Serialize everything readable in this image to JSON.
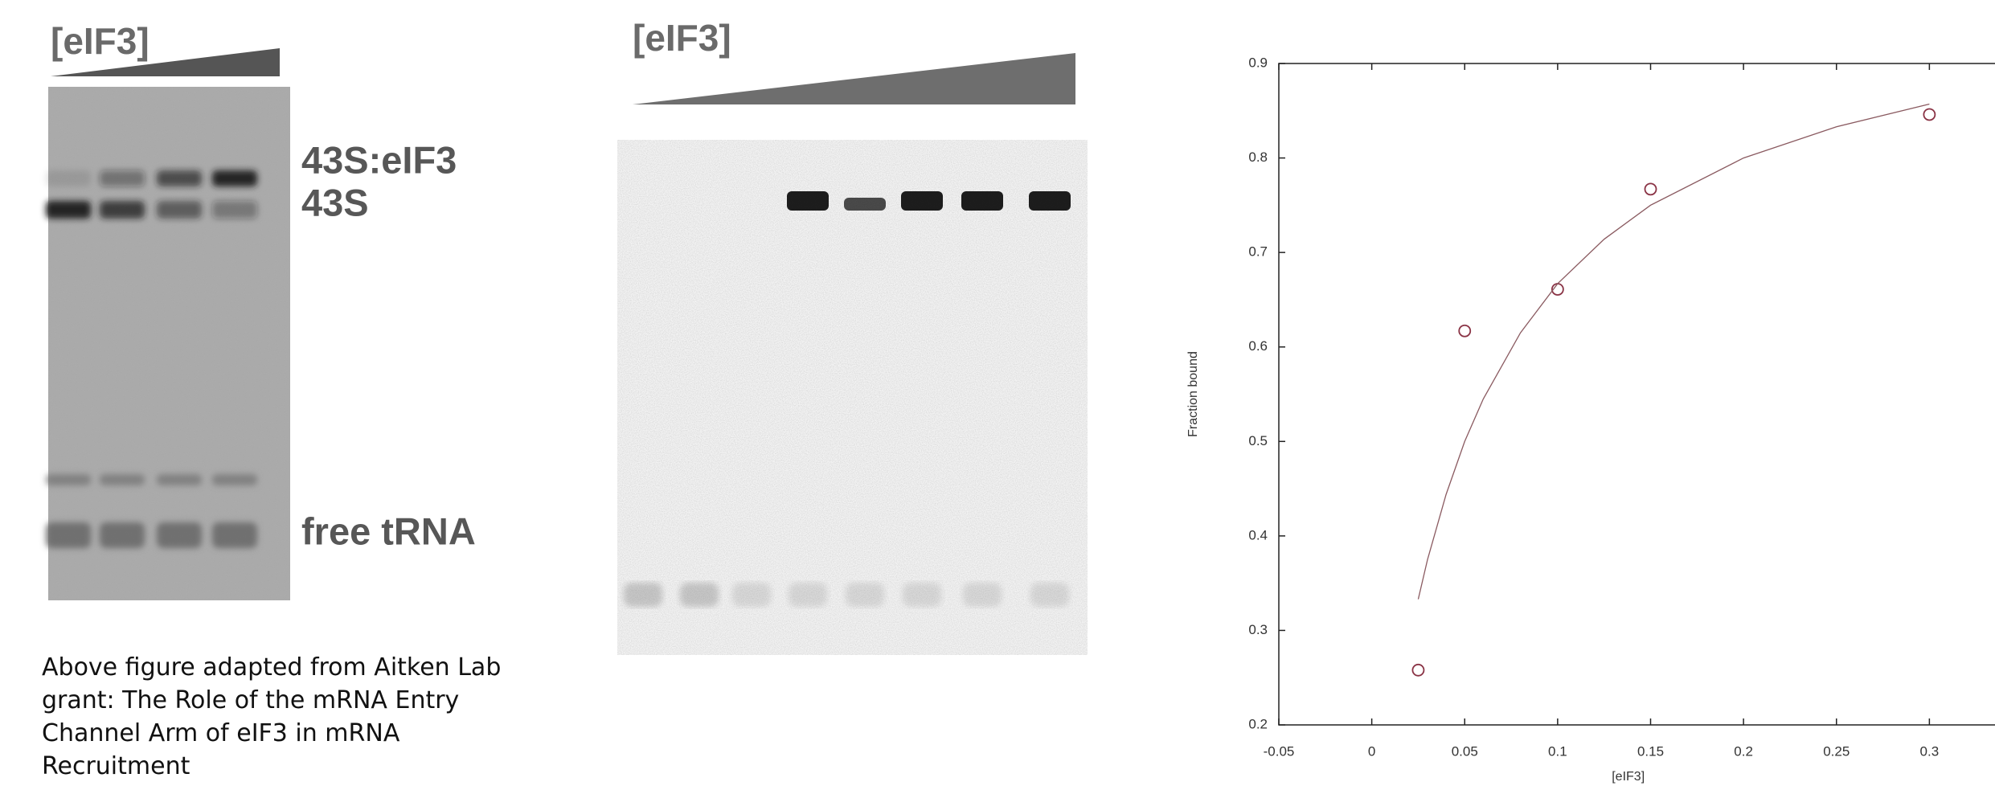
{
  "left_panel": {
    "heading": "[eIF3]",
    "labels": [
      "43S:eIF3",
      "43S",
      "free tRNA"
    ],
    "caption": [
      "Above figure adapted from Aitken Lab",
      "grant: The Role of the mRNA Entry",
      "Channel Arm of eIF3 in mRNA",
      "Recruitment"
    ]
  },
  "middle_panel": {
    "heading": "[eIF3]"
  },
  "chart_data": {
    "type": "scatter",
    "xlabel": "[eIF3]",
    "ylabel": "Fraction bound",
    "xlim": [
      -0.05,
      0.35
    ],
    "ylim": [
      0.2,
      0.9
    ],
    "xticks": [
      -0.05,
      0,
      0.05,
      0.1,
      0.15,
      0.2,
      0.25,
      0.3
    ],
    "yticks": [
      0.2,
      0.3,
      0.4,
      0.5,
      0.6,
      0.7,
      0.8,
      0.9
    ],
    "series": [
      {
        "style": "points",
        "color": "#8a3345",
        "x": [
          0.025,
          0.05,
          0.1,
          0.15,
          0.3
        ],
        "values": [
          0.258,
          0.617,
          0.661,
          0.767,
          0.846
        ]
      },
      {
        "style": "line",
        "color": "#8a5a60",
        "x": [
          0.025,
          0.03,
          0.04,
          0.05,
          0.06,
          0.08,
          0.1,
          0.125,
          0.15,
          0.2,
          0.25,
          0.3
        ],
        "values": [
          0.333,
          0.375,
          0.444,
          0.5,
          0.545,
          0.615,
          0.667,
          0.714,
          0.75,
          0.8,
          0.833,
          0.857
        ]
      }
    ]
  }
}
